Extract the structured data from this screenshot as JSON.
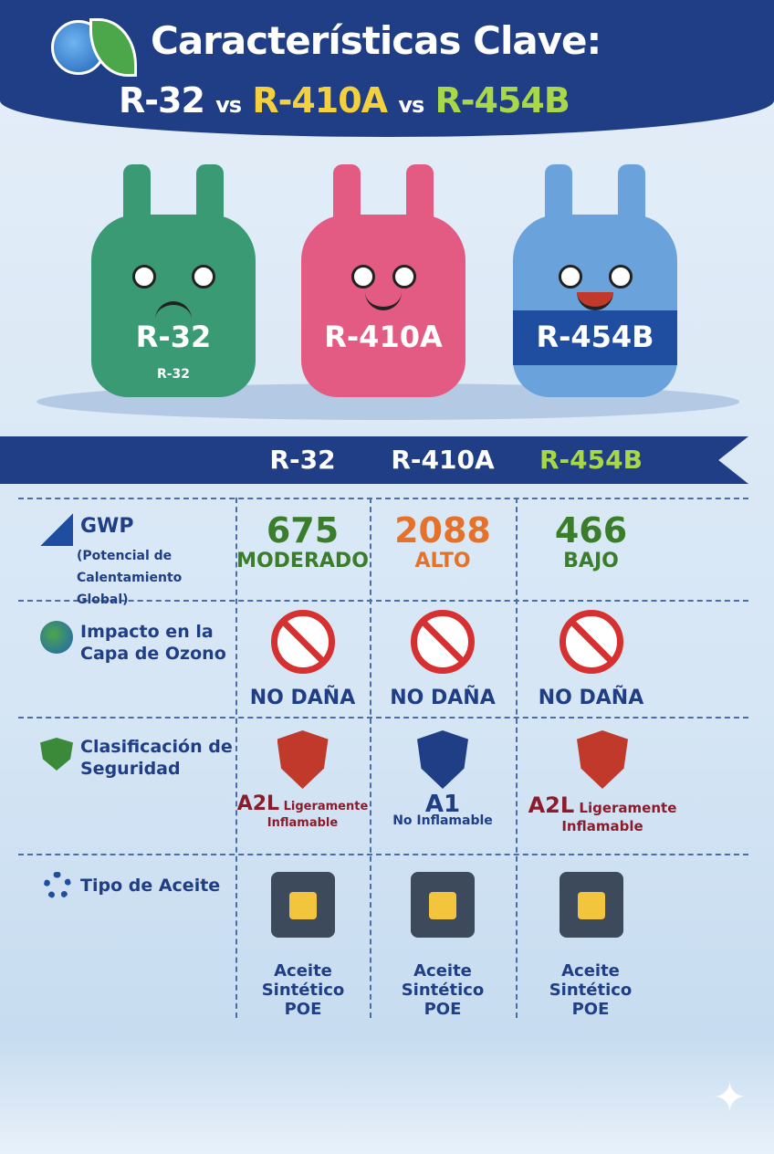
{
  "header": {
    "title": "Características Clave:",
    "subtitle": {
      "r32": "R-32",
      "vs1": "vs",
      "r410a": "R-410A",
      "vs2": "vs",
      "r454b": "R-454B"
    }
  },
  "colors": {
    "banner": "#1f3e86",
    "r32": "#3a9a74",
    "r410a": "#e35b82",
    "r454b": "#6aa3db",
    "green": "#3a7d2a",
    "orange": "#e4722a",
    "yellow": "#f4d03f",
    "lime": "#a8d84a"
  },
  "tanks": [
    {
      "label": "R-32",
      "sublabel": "R-32",
      "face": "grumpy"
    },
    {
      "label": "R-410A",
      "face": "smile"
    },
    {
      "label": "R-454B",
      "face": "happy"
    }
  ],
  "columns": [
    "R-32",
    "R-410A",
    "R-454B"
  ],
  "rows": {
    "gwp": {
      "label": "GWP",
      "sublabel": "(Potencial de Calentamiento Global)",
      "values": [
        {
          "value": "675",
          "level": "MODERADO"
        },
        {
          "value": "2088",
          "level": "ALTO"
        },
        {
          "value": "466",
          "level": "BAJO"
        }
      ]
    },
    "ozone": {
      "label": "Impacto en la Capa de Ozono",
      "values": [
        "NO DAÑA",
        "NO DAÑA",
        "NO DAÑA"
      ]
    },
    "safety": {
      "label": "Clasificación de Seguridad",
      "values": [
        {
          "class": "A2L",
          "desc": "Ligeramente Inflamable"
        },
        {
          "class": "A1",
          "desc": "No Inflamable"
        },
        {
          "class": "A2L",
          "desc": "Ligeramente Inflamable"
        }
      ]
    },
    "oil": {
      "label": "Tipo de Aceite",
      "values": [
        "Aceite Sintético POE",
        "Aceite Sintético POE",
        "Aceite Sintético POE"
      ]
    }
  }
}
